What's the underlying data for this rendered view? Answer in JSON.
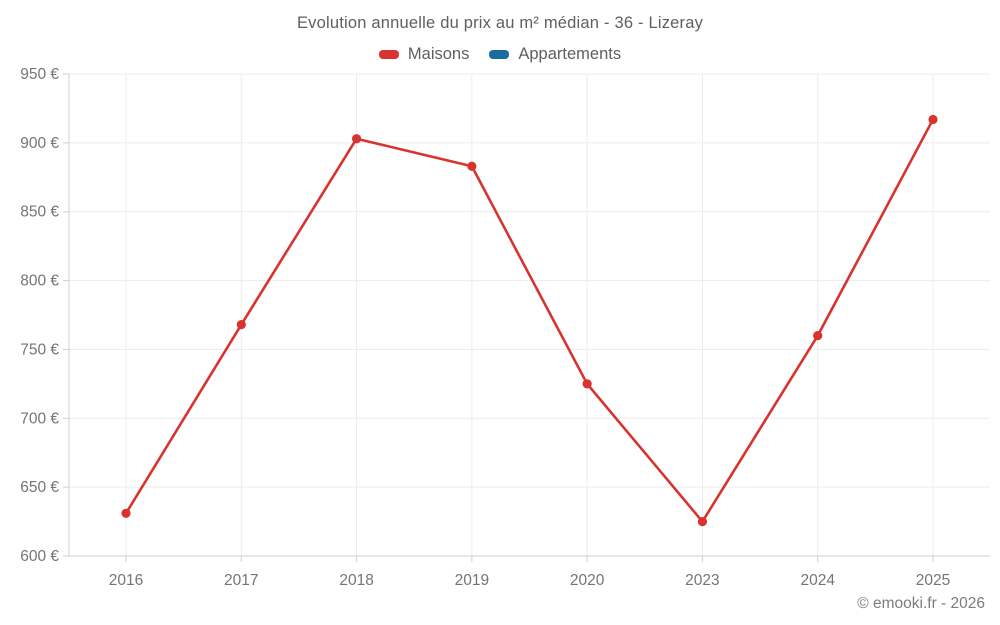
{
  "chart_data": {
    "type": "line",
    "title": "Evolution annuelle du prix au m² médian - 36 - Lizeray",
    "categories": [
      "2016",
      "2017",
      "2018",
      "2019",
      "2020",
      "2023",
      "2024",
      "2025"
    ],
    "series": [
      {
        "name": "Maisons",
        "color": "#d8332f",
        "values": [
          631,
          768,
          903,
          883,
          725,
          625,
          760,
          917
        ]
      },
      {
        "name": "Appartements",
        "color": "#1a6c9e",
        "values": []
      }
    ],
    "ylim": [
      600,
      950
    ],
    "ytick_step": 50,
    "y_tick_labels": [
      "600 €",
      "650 €",
      "700 €",
      "750 €",
      "800 €",
      "850 €",
      "900 €",
      "950 €"
    ],
    "y_suffix": " €",
    "grid": true,
    "legend_position": "top",
    "marker": "circle"
  },
  "footer": {
    "text": "© emooki.fr - 2026"
  },
  "colors": {
    "grid_line": "#ececec",
    "axis_line": "#cfcfcf",
    "tick_text": "#757575",
    "title_text": "#5f5f5f",
    "footer_text": "#7c7c7c",
    "background": "#ffffff"
  }
}
